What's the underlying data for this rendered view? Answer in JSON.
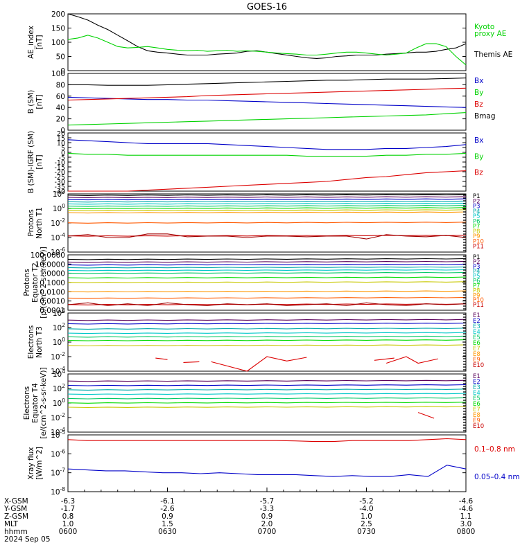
{
  "title": "GOES-16",
  "colors": {
    "black": "#000000",
    "blue": "#0000c8",
    "green": "#00d200",
    "red": "#dc0000",
    "p": [
      "#000000",
      "#5a005a",
      "#0000c8",
      "#00aaaa",
      "#00c8c8",
      "#00c864",
      "#00dc00",
      "#c8c800",
      "#ff9600",
      "#ff5a00",
      "#c80000",
      "#960000"
    ]
  },
  "chart_data": [
    {
      "type": "line",
      "id": "ae",
      "ylabel": [
        "AE_index",
        "[nT]"
      ],
      "ylim": [
        0,
        200
      ],
      "yticks": [
        {
          "v": 200,
          "t": "200"
        },
        {
          "v": 150,
          "t": "150"
        },
        {
          "v": 100,
          "t": "100"
        },
        {
          "v": 50,
          "t": "50"
        },
        {
          "v": 0,
          "t": "0"
        }
      ],
      "legend": [
        {
          "text": "Kyoto",
          "color": "green"
        },
        {
          "text": "proxy AE",
          "color": "green"
        },
        {
          "text": "Themis AE",
          "color": "black"
        }
      ],
      "series": [
        {
          "name": "Themis AE",
          "color": "black",
          "values": [
            200,
            190,
            178,
            160,
            145,
            125,
            105,
            85,
            70,
            65,
            62,
            58,
            55,
            55,
            55,
            58,
            60,
            62,
            68,
            70,
            65,
            60,
            55,
            50,
            45,
            43,
            45,
            50,
            52,
            55,
            55,
            55,
            58,
            60,
            62,
            65,
            65,
            68,
            75,
            80,
            95
          ]
        },
        {
          "name": "Kyoto proxy AE",
          "color": "green",
          "values": [
            110,
            115,
            125,
            115,
            100,
            85,
            80,
            82,
            85,
            80,
            75,
            72,
            70,
            72,
            68,
            70,
            72,
            68,
            70,
            68,
            65,
            62,
            60,
            58,
            55,
            55,
            58,
            62,
            65,
            65,
            62,
            58,
            55,
            58,
            62,
            80,
            95,
            95,
            85,
            50,
            20
          ]
        }
      ]
    },
    {
      "type": "line",
      "id": "bsm",
      "ylabel": [
        "B (SM)",
        "[nT]"
      ],
      "ylim": [
        0,
        100
      ],
      "yticks": [
        {
          "v": 100,
          "t": "100"
        },
        {
          "v": 80,
          "t": "80"
        },
        {
          "v": 60,
          "t": "60"
        },
        {
          "v": 40,
          "t": "40"
        },
        {
          "v": 20,
          "t": "20"
        },
        {
          "v": 0,
          "t": "0"
        }
      ],
      "legend": [
        {
          "text": "Bx",
          "color": "blue"
        },
        {
          "text": "By",
          "color": "green"
        },
        {
          "text": "Bz",
          "color": "red"
        },
        {
          "text": "Bmag",
          "color": "black"
        }
      ],
      "series": [
        {
          "name": "Bmag",
          "color": "black",
          "values": [
            80,
            80,
            79,
            79,
            79,
            80,
            81,
            82,
            83,
            84,
            85,
            86,
            87,
            88,
            88,
            89,
            90,
            90,
            90,
            91,
            92
          ]
        },
        {
          "name": "Bx",
          "color": "blue",
          "values": [
            58,
            57,
            56,
            55,
            54,
            54,
            53,
            53,
            52,
            51,
            50,
            49,
            48,
            47,
            46,
            45,
            44,
            43,
            42,
            41,
            40
          ]
        },
        {
          "name": "Bz",
          "color": "red",
          "values": [
            53,
            54,
            55,
            56,
            57,
            58,
            59,
            61,
            62,
            63,
            64,
            65,
            66,
            67,
            68,
            69,
            70,
            71,
            72,
            73,
            74
          ]
        },
        {
          "name": "By",
          "color": "green",
          "values": [
            9,
            10,
            11,
            12,
            13,
            14,
            15,
            16,
            17,
            18,
            19,
            20,
            21,
            22,
            23,
            24,
            25,
            26,
            27,
            29,
            31
          ]
        }
      ]
    },
    {
      "type": "line",
      "id": "bigrf",
      "ylabel": [
        "B (SM)-IGRF (SM)",
        "[nT]"
      ],
      "ylim": [
        -40,
        20
      ],
      "yticks": [
        {
          "v": 20,
          "t": "20"
        },
        {
          "v": 15,
          "t": "15"
        },
        {
          "v": 10,
          "t": "10"
        },
        {
          "v": 5,
          "t": "5"
        },
        {
          "v": 0,
          "t": "0"
        },
        {
          "v": -5,
          "t": "-5"
        },
        {
          "v": -10,
          "t": "-10"
        },
        {
          "v": -15,
          "t": "-15"
        },
        {
          "v": -20,
          "t": "-20"
        },
        {
          "v": -25,
          "t": "-25"
        },
        {
          "v": -30,
          "t": "-30"
        },
        {
          "v": -35,
          "t": "-35"
        },
        {
          "v": -40,
          "t": "-40"
        }
      ],
      "legend": [
        {
          "text": "Bx",
          "color": "blue"
        },
        {
          "text": "By",
          "color": "green"
        },
        {
          "text": "Bz",
          "color": "red"
        }
      ],
      "series": [
        {
          "name": "Bx",
          "color": "blue",
          "values": [
            13,
            12,
            11,
            10,
            9,
            9,
            9,
            9,
            8,
            7,
            6,
            5,
            4,
            3,
            3,
            3,
            4,
            4,
            5,
            6,
            8
          ]
        },
        {
          "name": "By",
          "color": "green",
          "values": [
            -1,
            -2,
            -2,
            -3,
            -3,
            -3,
            -3,
            -3,
            -3,
            -3,
            -3,
            -3,
            -4,
            -4,
            -4,
            -4,
            -3,
            -3,
            -2,
            -2,
            -1
          ]
        },
        {
          "name": "Bz",
          "color": "red",
          "values": [
            -40,
            -40,
            -40,
            -40,
            -39,
            -38,
            -37,
            -36,
            -35,
            -34,
            -33,
            -32,
            -31,
            -30,
            -28,
            -26,
            -25,
            -23,
            -21,
            -20,
            -19
          ]
        }
      ]
    },
    {
      "type": "line",
      "id": "pnt1",
      "ylabel": [
        "Protons",
        "North T1"
      ],
      "log": true,
      "ylim": [
        -6,
        2
      ],
      "yticks": [
        {
          "v": 2,
          "t": "10^2"
        },
        {
          "v": 0,
          "t": "10^0"
        },
        {
          "v": -2,
          "t": "10^-2"
        },
        {
          "v": -4,
          "t": "10^-4"
        },
        {
          "v": -6,
          "t": "10^-6"
        }
      ],
      "legend": [
        "P1",
        "P2",
        "P3",
        "P4",
        "P5",
        "P6",
        "P7",
        "P8",
        "P9",
        "P10",
        "P11"
      ],
      "levels": [
        1.8,
        1.5,
        1.2,
        0.9,
        0.6,
        0.3,
        0.0,
        -0.3,
        -0.6,
        -2.0,
        -3.8
      ],
      "noisy": {
        "name": "P11",
        "values": [
          -3.8,
          -3.6,
          -4,
          -4,
          -3.5,
          -3.5,
          -3.9,
          -3.8,
          -3.8,
          -4,
          -3.8,
          -3.8,
          -3.9,
          -3.8,
          -3.8,
          -4.2,
          -3.6,
          -3.8,
          -3.9,
          -3.7,
          -4
        ]
      }
    },
    {
      "type": "line",
      "id": "pet2",
      "ylabel": [
        "Protons",
        "Equator T2",
        "[p/(cm^2-s-sr-keV)]"
      ],
      "log": true,
      "ylim": [
        -4,
        2
      ],
      "yticks": [
        {
          "v": 2,
          "t": "100.0000"
        },
        {
          "v": 1,
          "t": "10.0000"
        },
        {
          "v": 0,
          "t": "1.0000"
        },
        {
          "v": -1,
          "t": "0.1000"
        },
        {
          "v": -2,
          "t": "0.0100"
        },
        {
          "v": -3,
          "t": "0.0010"
        },
        {
          "v": -4,
          "t": "0.0001"
        }
      ],
      "legend": [
        "P1",
        "P2",
        "P3",
        "P4",
        "P5",
        "P6",
        "P7",
        "P8",
        "P9",
        "P10",
        "P11"
      ],
      "levels": [
        1.5,
        1.2,
        0.9,
        0.6,
        0.3,
        0.0,
        -0.5,
        -1.0,
        -2.0,
        -2.7,
        -3.4
      ],
      "noisy": {
        "name": "P11",
        "values": [
          -3.4,
          -3.2,
          -3.5,
          -3.3,
          -3.5,
          -3.2,
          -3.4,
          -3.5,
          -3.3,
          -3.4,
          -3.3,
          -3.5,
          -3.4,
          -3.3,
          -3.5,
          -3.2,
          -3.4,
          -3.5,
          -3.3,
          -3.4,
          -3.3
        ]
      }
    },
    {
      "type": "line",
      "id": "ent3",
      "ylabel": [
        "Electrons",
        "North T3"
      ],
      "log": true,
      "ylim": [
        -4,
        4
      ],
      "yticks": [
        {
          "v": 4,
          "t": "10^4"
        },
        {
          "v": 2,
          "t": "10^2"
        },
        {
          "v": 0,
          "t": "10^0"
        },
        {
          "v": -2,
          "t": "10^-2"
        },
        {
          "v": -4,
          "t": "10^-4"
        }
      ],
      "legend": [
        "E1",
        "E2",
        "E3",
        "E4",
        "E5",
        "E6",
        "E7",
        "E8",
        "E9",
        "E10"
      ],
      "levels": [
        3.0,
        2.5,
        1.8,
        1.2,
        0.7,
        0.2,
        -0.5
      ],
      "noisy": {
        "name": "E9",
        "segments": [
          [
            [
              0.22,
              -2.2
            ],
            [
              0.25,
              -2.4
            ]
          ],
          [
            [
              0.29,
              -2.8
            ],
            [
              0.33,
              -2.7
            ]
          ],
          [
            [
              0.36,
              -2.7
            ],
            [
              0.45,
              -4.0
            ],
            [
              0.5,
              -2.0
            ],
            [
              0.55,
              -2.6
            ],
            [
              0.6,
              -2.1
            ]
          ],
          [
            [
              0.77,
              -2.5
            ],
            [
              0.82,
              -2.2
            ]
          ],
          [
            [
              0.8,
              -2.9
            ],
            [
              0.85,
              -2.0
            ],
            [
              0.88,
              -2.9
            ],
            [
              0.93,
              -2.3
            ]
          ]
        ]
      }
    },
    {
      "type": "line",
      "id": "eet4",
      "ylabel": [
        "Electrons",
        "Equator T4",
        "[e/(cm^2-s-sr-keV)]"
      ],
      "log": true,
      "ylim": [
        -4,
        4
      ],
      "yticks": [
        {
          "v": 4,
          "t": "10^4"
        },
        {
          "v": 2,
          "t": "10^2"
        },
        {
          "v": 0,
          "t": "10^0"
        },
        {
          "v": -2,
          "t": "10^-2"
        },
        {
          "v": -4,
          "t": "10^-4"
        }
      ],
      "legend": [
        "E1",
        "E2",
        "E3",
        "E4",
        "E5",
        "E6",
        "E7",
        "E8",
        "E9",
        "E10"
      ],
      "levels": [
        3.0,
        2.4,
        1.8,
        1.2,
        0.6,
        0.0,
        -0.6
      ],
      "noisy": {
        "name": "E9",
        "segments": [
          [
            [
              0.88,
              -1.3
            ],
            [
              0.92,
              -2.1
            ]
          ]
        ]
      }
    },
    {
      "type": "line",
      "id": "xray",
      "ylabel": [
        "Xray flux",
        "[W/m^2]"
      ],
      "log": true,
      "ylim": [
        -8,
        -5
      ],
      "yticks": [
        {
          "v": -5,
          "t": "10^-5"
        },
        {
          "v": -6,
          "t": "10^-6"
        },
        {
          "v": -7,
          "t": "10^-7"
        },
        {
          "v": -8,
          "t": "10^-8"
        }
      ],
      "legend": [
        {
          "text": "0.1–0.8 nm",
          "color": "red"
        },
        {
          "text": "0.05–0.4 nm",
          "color": "blue"
        }
      ],
      "series": [
        {
          "name": "0.1–0.8 nm",
          "color": "red",
          "values": [
            -5.25,
            -5.3,
            -5.3,
            -5.3,
            -5.3,
            -5.3,
            -5.3,
            -5.3,
            -5.3,
            -5.3,
            -5.3,
            -5.3,
            -5.32,
            -5.35,
            -5.35,
            -5.3,
            -5.3,
            -5.3,
            -5.3,
            -5.25,
            -5.2,
            -5.25
          ]
        },
        {
          "name": "0.05–0.4 nm",
          "color": "blue",
          "values": [
            -6.8,
            -6.85,
            -6.9,
            -6.9,
            -6.95,
            -7.0,
            -7.0,
            -7.05,
            -7.0,
            -7.05,
            -7.1,
            -7.1,
            -7.1,
            -7.15,
            -7.2,
            -7.15,
            -7.2,
            -7.2,
            -7.1,
            -7.2,
            -6.6,
            -6.8
          ]
        }
      ]
    }
  ],
  "xaxis": {
    "rows": [
      {
        "label": "X-GSM",
        "values": [
          "-6.3",
          "-6.1",
          "-5.7",
          "-5.2",
          "-4.6"
        ]
      },
      {
        "label": "Y-GSM",
        "values": [
          "-1.7",
          "-2.6",
          "-3.3",
          "-4.0",
          "-4.6"
        ]
      },
      {
        "label": "Z-GSM",
        "values": [
          "0.8",
          "0.9",
          "0.9",
          "1.0",
          "1.1"
        ]
      },
      {
        "label": "MLT",
        "values": [
          "1.0",
          "1.5",
          "2.0",
          "2.5",
          "3.0"
        ]
      },
      {
        "label": "hhmm",
        "values": [
          "0600",
          "0630",
          "0700",
          "0730",
          "0800"
        ]
      }
    ],
    "date": "2024 Sep 05"
  }
}
